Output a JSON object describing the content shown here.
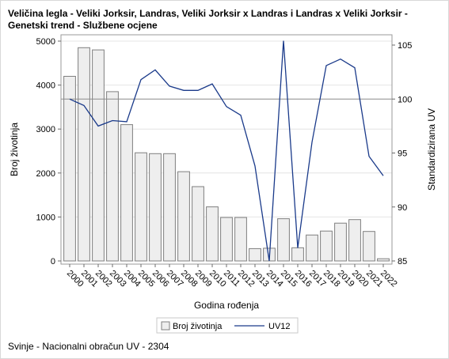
{
  "chart_data": {
    "type": "bar+line",
    "title_line1": "Veličina legla - Veliki Jorksir, Landras, Veliki Jorksir x Landras i Landras x Veliki Jorksir -",
    "title_line2": "Genetski trend - Službene ocjene",
    "categories": [
      "2000",
      "2001",
      "2002",
      "2003",
      "2004",
      "2005",
      "2006",
      "2007",
      "2008",
      "2009",
      "2010",
      "2011",
      "2012",
      "2013",
      "2014",
      "2015",
      "2016",
      "2017",
      "2018",
      "2019",
      "2020",
      "2021",
      "2022"
    ],
    "series": [
      {
        "name": "Broj životinja",
        "type": "bar",
        "axis": "left",
        "color": "#eeeeee",
        "border": "#7f7f7f",
        "values": [
          4200,
          4850,
          4800,
          3850,
          3100,
          2460,
          2440,
          2440,
          2030,
          1690,
          1230,
          990,
          990,
          280,
          290,
          960,
          300,
          590,
          680,
          860,
          940,
          670,
          50
        ]
      },
      {
        "name": "UV12",
        "type": "line",
        "axis": "right",
        "color": "#1a3a8a",
        "values": [
          100.0,
          99.4,
          97.5,
          98.0,
          97.9,
          101.8,
          102.7,
          101.2,
          100.8,
          100.8,
          101.4,
          99.3,
          98.5,
          93.8,
          85.0,
          105.4,
          86.2,
          96.0,
          103.1,
          103.7,
          102.9,
          94.7,
          92.9
        ]
      }
    ],
    "reference_line": 100,
    "y_left": {
      "label": "Broj životinja",
      "ylim": [
        0,
        5000
      ],
      "ticks": [
        "0",
        "1000",
        "2000",
        "3000",
        "4000",
        "5000"
      ]
    },
    "y_right": {
      "label": "Standardizirana UV",
      "ylim": [
        85,
        106
      ],
      "ticks": [
        "85",
        "90",
        "95",
        "100",
        "105"
      ]
    },
    "xlabel": "Godina rođenja",
    "legend": {
      "placement": "bottom",
      "items": [
        "Broj životinja",
        "UV12"
      ]
    },
    "grid": "horizontal"
  },
  "footnote": "Svinje - Nacionalni obračun UV - 2304"
}
